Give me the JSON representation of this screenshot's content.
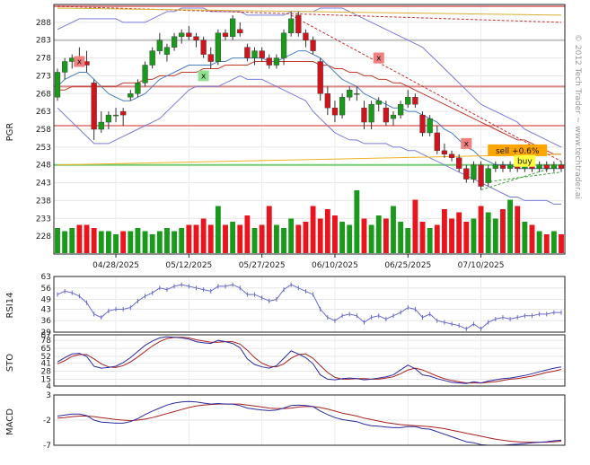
{
  "watermark": "© 2012 Tech Trader ~ www.techtrader.ai",
  "chart_data": [
    {
      "name": "price",
      "type": "candlestick",
      "ylabel": "PGR",
      "ylim": [
        223,
        293
      ],
      "yticks": [
        228,
        233,
        238,
        243,
        248,
        253,
        258,
        263,
        268,
        273,
        278,
        283,
        288
      ],
      "x_tick_labels": [
        "04/28/2025",
        "05/12/2025",
        "05/27/2025",
        "06/10/2025",
        "06/25/2025",
        "07/10/2025"
      ],
      "x_tick_index": [
        8,
        18,
        28,
        38,
        48,
        58
      ],
      "num_bars": 70,
      "candles": [
        [
          267,
          275,
          266,
          274
        ],
        [
          274,
          278,
          272,
          277
        ],
        [
          277,
          279,
          275,
          278
        ],
        [
          278,
          281,
          276,
          277
        ],
        [
          277,
          280,
          274,
          276
        ],
        [
          271,
          272,
          255,
          258
        ],
        [
          258,
          263,
          257,
          260
        ],
        [
          260,
          263,
          258,
          262
        ],
        [
          262,
          264,
          260,
          262
        ],
        [
          263,
          264,
          259,
          262
        ],
        [
          267,
          269,
          266,
          268
        ],
        [
          268,
          272,
          267,
          271
        ],
        [
          271,
          277,
          270,
          276
        ],
        [
          276,
          281,
          275,
          280
        ],
        [
          280,
          285,
          279,
          283
        ],
        [
          279,
          282,
          277,
          281
        ],
        [
          281,
          285,
          280,
          284
        ],
        [
          284,
          286,
          282,
          285
        ],
        [
          285,
          287,
          283,
          284
        ],
        [
          284,
          285,
          281,
          283
        ],
        [
          283,
          284,
          278,
          279
        ],
        [
          279,
          281,
          275,
          277
        ],
        [
          277,
          286,
          276,
          285
        ],
        [
          285,
          286,
          283,
          284
        ],
        [
          284,
          290,
          283,
          289
        ],
        [
          286,
          288,
          284,
          285
        ],
        [
          281,
          282,
          277,
          278
        ],
        [
          278,
          281,
          276,
          280
        ],
        [
          280,
          281,
          277,
          278
        ],
        [
          278,
          279,
          275,
          276
        ],
        [
          276,
          279,
          275,
          278
        ],
        [
          278,
          286,
          276,
          285
        ],
        [
          285,
          291,
          284,
          289
        ],
        [
          290,
          291,
          284,
          285
        ],
        [
          285,
          286,
          281,
          283
        ],
        [
          283,
          284,
          279,
          280
        ],
        [
          277,
          278,
          266,
          268
        ],
        [
          268,
          270,
          262,
          264
        ],
        [
          264,
          266,
          260,
          262
        ],
        [
          262,
          268,
          261,
          267
        ],
        [
          267,
          270,
          266,
          269
        ],
        [
          268,
          270,
          266,
          268
        ],
        [
          264,
          266,
          258,
          260
        ],
        [
          260,
          266,
          258,
          265
        ],
        [
          265,
          267,
          263,
          266
        ],
        [
          264,
          266,
          259,
          260
        ],
        [
          261,
          263,
          259,
          262
        ],
        [
          262,
          266,
          261,
          265
        ],
        [
          265,
          269,
          264,
          267
        ],
        [
          267,
          268,
          264,
          265
        ],
        [
          262,
          263,
          256,
          257
        ],
        [
          257,
          262,
          256,
          261
        ],
        [
          257,
          259,
          251,
          252
        ],
        [
          252,
          254,
          250,
          251
        ],
        [
          251,
          252,
          249,
          250
        ],
        [
          250,
          251,
          246,
          247
        ],
        [
          247,
          248,
          243,
          244
        ],
        [
          244,
          249,
          243,
          248
        ],
        [
          248,
          249,
          241,
          242
        ],
        [
          243,
          248,
          242,
          247
        ],
        [
          247,
          249,
          246,
          248
        ],
        [
          248,
          249,
          246,
          247
        ],
        [
          247,
          249,
          246,
          248
        ],
        [
          248,
          249,
          246,
          247
        ],
        [
          247,
          249,
          246,
          248
        ],
        [
          248,
          249,
          246,
          247
        ],
        [
          247,
          249,
          246,
          248
        ],
        [
          248,
          249,
          246,
          247
        ],
        [
          247,
          249,
          246,
          248
        ],
        [
          248,
          249,
          246,
          247
        ]
      ],
      "volume_relative": [
        0.4,
        0.35,
        0.4,
        0.45,
        0.45,
        0.4,
        0.35,
        0.35,
        0.3,
        0.35,
        0.35,
        0.4,
        0.35,
        0.3,
        0.35,
        0.4,
        0.35,
        0.4,
        0.45,
        0.45,
        0.55,
        0.45,
        0.75,
        0.45,
        0.5,
        0.45,
        0.6,
        0.4,
        0.45,
        0.75,
        0.45,
        0.4,
        0.55,
        0.45,
        0.5,
        0.75,
        0.55,
        0.7,
        0.6,
        0.5,
        0.45,
        1.0,
        0.55,
        0.45,
        0.6,
        0.55,
        0.75,
        0.5,
        0.4,
        0.85,
        0.5,
        0.4,
        0.45,
        0.7,
        0.55,
        0.65,
        0.5,
        0.55,
        0.75,
        0.65,
        0.55,
        0.7,
        0.85,
        0.75,
        0.5,
        0.45,
        0.35,
        0.3,
        0.35,
        0.3
      ],
      "ma_fast": [
        270,
        272,
        273,
        274,
        274,
        272,
        270,
        268,
        267,
        266,
        266,
        267,
        268,
        270,
        272,
        273,
        274,
        275,
        276,
        276,
        276,
        276,
        277,
        277,
        278,
        278,
        278,
        278,
        278,
        277,
        277,
        278,
        279,
        280,
        280,
        279,
        278,
        276,
        274,
        272,
        271,
        270,
        268,
        267,
        266,
        265,
        264,
        264,
        263,
        263,
        262,
        261,
        260,
        258,
        257,
        255,
        253,
        252,
        250,
        249,
        248,
        248,
        248,
        247,
        247,
        247,
        247,
        247,
        247,
        247
      ],
      "ma_slow": [
        269,
        269,
        270,
        270,
        270,
        270,
        270,
        270,
        270,
        271,
        271,
        271,
        272,
        272,
        273,
        273,
        273,
        274,
        274,
        274,
        275,
        275,
        275,
        276,
        276,
        276,
        276,
        277,
        277,
        277,
        277,
        277,
        277,
        277,
        277,
        277,
        276,
        276,
        275,
        275,
        274,
        274,
        273,
        273,
        272,
        272,
        271,
        271,
        270,
        269,
        268,
        267,
        266,
        265,
        264,
        263,
        262,
        261,
        260,
        259,
        258,
        257,
        256,
        255,
        255,
        254,
        253,
        252,
        251,
        251
      ],
      "bb_upper": [
        286,
        287,
        288,
        289,
        289,
        289,
        289,
        289,
        289,
        288,
        288,
        288,
        288,
        289,
        290,
        291,
        291,
        292,
        292,
        292,
        292,
        291,
        291,
        291,
        291,
        291,
        290,
        290,
        290,
        290,
        290,
        290,
        291,
        291,
        291,
        291,
        292,
        292,
        292,
        292,
        291,
        290,
        289,
        288,
        287,
        286,
        285,
        284,
        283,
        282,
        281,
        279,
        277,
        275,
        273,
        271,
        269,
        267,
        265,
        264,
        263,
        262,
        261,
        260,
        258,
        257,
        256,
        255,
        254,
        253
      ],
      "bb_lower": [
        264,
        262,
        260,
        258,
        256,
        254,
        254,
        254,
        255,
        256,
        257,
        258,
        259,
        260,
        261,
        263,
        265,
        267,
        269,
        270,
        270,
        270,
        270,
        271,
        272,
        273,
        272,
        272,
        272,
        271,
        270,
        269,
        268,
        267,
        266,
        263,
        261,
        259,
        257,
        256,
        255,
        255,
        254,
        254,
        254,
        254,
        253,
        253,
        252,
        252,
        251,
        250,
        249,
        248,
        247,
        246,
        245,
        244,
        243,
        242,
        241,
        240,
        239,
        239,
        238,
        238,
        238,
        238,
        237,
        237
      ],
      "levels_horizontal": [
        {
          "value": 292.5,
          "color": "#d97070"
        },
        {
          "value": 283,
          "color": "#bbbbbb"
        },
        {
          "value": 270,
          "color": "#bbbbbb"
        },
        {
          "value": 270,
          "color": "#e08080"
        },
        {
          "value": 259,
          "color": "#e08080"
        },
        {
          "value": 248,
          "color": "#5dc85d"
        }
      ],
      "trend_lines": [
        {
          "from": [
            0,
            292.5
          ],
          "to": [
            69,
            288
          ],
          "color": "#c83030",
          "style": "dashed"
        },
        {
          "from": [
            0,
            292
          ],
          "to": [
            69,
            290
          ],
          "color": "#d8b030",
          "style": "solid"
        },
        {
          "from": [
            0,
            248
          ],
          "to": [
            69,
            251
          ],
          "color": "#f0b020",
          "style": "solid"
        },
        {
          "from": [
            32,
            290
          ],
          "to": [
            69,
            249
          ],
          "color": "#c83030",
          "style": "dashed"
        },
        {
          "from": [
            58,
            243
          ],
          "to": [
            69,
            246
          ],
          "color": "#40a040",
          "style": "dashed"
        },
        {
          "from": [
            58,
            241
          ],
          "to": [
            69,
            248
          ],
          "color": "#40a040",
          "style": "dashed"
        }
      ],
      "markers": [
        {
          "bar": 3,
          "value": 277,
          "label": "x",
          "color": "#f08080"
        },
        {
          "bar": 20,
          "value": 273,
          "label": "x",
          "color": "#90e090"
        },
        {
          "bar": 44,
          "value": 278,
          "label": "x",
          "color": "#f08080"
        },
        {
          "bar": 56,
          "value": 254,
          "label": "x",
          "color": "#f08080"
        }
      ],
      "signals": [
        {
          "text": "sell +0.6%",
          "bar": 63,
          "value": 252,
          "color": "#ffa500"
        },
        {
          "text": "buy",
          "bar": 64,
          "value": 249,
          "color": "#ffff40"
        }
      ]
    },
    {
      "name": "rsi",
      "type": "line",
      "ylabel": "RSI14",
      "ylim": [
        29,
        63
      ],
      "yticks": [
        29,
        36,
        43,
        49,
        56,
        63
      ],
      "values": [
        52,
        54,
        53,
        51,
        47,
        40,
        38,
        42,
        43,
        43,
        44,
        48,
        51,
        53,
        56,
        55,
        57,
        58,
        57,
        56,
        55,
        54,
        57,
        57,
        58,
        56,
        52,
        52,
        50,
        48,
        49,
        55,
        58,
        56,
        54,
        52,
        43,
        38,
        36,
        39,
        40,
        39,
        35,
        38,
        39,
        37,
        39,
        41,
        44,
        43,
        38,
        40,
        36,
        35,
        34,
        33,
        31,
        34,
        31,
        35,
        37,
        38,
        37,
        38,
        39,
        39,
        40,
        40,
        41,
        41
      ]
    },
    {
      "name": "stochastic",
      "type": "line",
      "ylabel": "STO",
      "ylim": [
        4,
        87
      ],
      "yticks": [
        4,
        15,
        28,
        41,
        52,
        65,
        78,
        87
      ],
      "k": [
        43,
        50,
        56,
        57,
        52,
        36,
        33,
        34,
        36,
        42,
        50,
        60,
        70,
        77,
        82,
        84,
        83,
        82,
        80,
        76,
        74,
        73,
        78,
        76,
        73,
        66,
        48,
        39,
        35,
        33,
        37,
        49,
        61,
        56,
        50,
        40,
        22,
        15,
        14,
        16,
        17,
        16,
        14,
        15,
        17,
        19,
        22,
        30,
        38,
        32,
        22,
        20,
        16,
        13,
        10,
        9,
        8,
        11,
        9,
        12,
        14,
        16,
        17,
        19,
        21,
        24,
        27,
        30,
        33,
        35
      ],
      "d": [
        40,
        45,
        52,
        55,
        55,
        48,
        40,
        35,
        34,
        37,
        43,
        51,
        60,
        69,
        76,
        81,
        83,
        83,
        82,
        79,
        77,
        75,
        75,
        76,
        76,
        72,
        62,
        50,
        41,
        36,
        35,
        40,
        49,
        55,
        56,
        49,
        37,
        26,
        18,
        15,
        15,
        16,
        16,
        15,
        15,
        17,
        19,
        24,
        30,
        33,
        30,
        25,
        20,
        16,
        13,
        11,
        9,
        9,
        9,
        10,
        11,
        13,
        15,
        16,
        18,
        20,
        23,
        26,
        28,
        31
      ]
    },
    {
      "name": "macd",
      "type": "line",
      "ylabel": "MACD",
      "ylim": [
        -7,
        3
      ],
      "yticks": [
        -7,
        -2,
        3
      ],
      "macd": [
        -1.2,
        -1.0,
        -0.8,
        -0.8,
        -1.1,
        -2.0,
        -2.4,
        -2.5,
        -2.6,
        -2.6,
        -2.3,
        -1.7,
        -0.9,
        -0.2,
        0.4,
        1.0,
        1.4,
        1.6,
        1.7,
        1.6,
        1.4,
        1.2,
        1.3,
        1.2,
        1.2,
        0.9,
        0.4,
        0.2,
        0.0,
        -0.1,
        0.0,
        0.4,
        0.9,
        1.0,
        0.9,
        0.7,
        -0.2,
        -0.9,
        -1.5,
        -1.9,
        -2.1,
        -2.3,
        -2.8,
        -3.1,
        -3.2,
        -3.4,
        -3.5,
        -3.5,
        -3.3,
        -3.3,
        -3.7,
        -3.8,
        -4.3,
        -4.8,
        -5.3,
        -5.8,
        -6.3,
        -6.5,
        -6.9,
        -7.0,
        -7.0,
        -7.0,
        -6.9,
        -6.8,
        -6.7,
        -6.5,
        -6.4,
        -6.3,
        -6.1,
        -6.0
      ],
      "signal": [
        -1.6,
        -1.5,
        -1.3,
        -1.2,
        -1.2,
        -1.3,
        -1.5,
        -1.7,
        -1.9,
        -2.0,
        -2.1,
        -2.0,
        -1.8,
        -1.5,
        -1.1,
        -0.7,
        -0.3,
        0.1,
        0.5,
        0.8,
        1.0,
        1.1,
        1.2,
        1.2,
        1.2,
        1.2,
        1.0,
        0.8,
        0.6,
        0.4,
        0.3,
        0.3,
        0.4,
        0.6,
        0.7,
        0.7,
        0.5,
        0.2,
        -0.2,
        -0.6,
        -0.9,
        -1.2,
        -1.6,
        -1.9,
        -2.2,
        -2.5,
        -2.7,
        -2.9,
        -3.0,
        -3.1,
        -3.2,
        -3.3,
        -3.5,
        -3.7,
        -4.0,
        -4.3,
        -4.6,
        -4.9,
        -5.2,
        -5.5,
        -5.8,
        -6.0,
        -6.2,
        -6.3,
        -6.4,
        -6.4,
        -6.4,
        -6.4,
        -6.3,
        -6.2
      ]
    }
  ]
}
